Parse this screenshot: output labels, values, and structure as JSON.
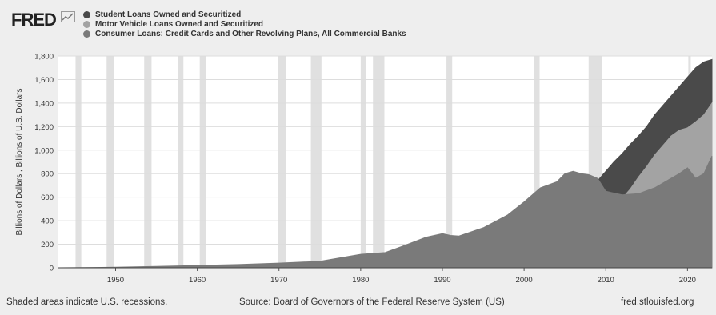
{
  "brand": {
    "name": "FRED"
  },
  "footer": {
    "left": "Shaded areas indicate U.S. recessions.",
    "center": "Source: Board of Governors of the Federal Reserve System (US)",
    "right": "fred.stlouisfed.org"
  },
  "colors": {
    "student": "#4a4a4a",
    "motor": "#a3a3a3",
    "consumer": "#7a7a7a",
    "recession": "#e0e0e0",
    "plot_bg": "#ffffff"
  },
  "chart_data": {
    "type": "area",
    "title": "",
    "xlabel": "",
    "ylabel": "Billions of Dollars , Billions of U.S. Dollars",
    "xlim": [
      1943,
      2023
    ],
    "ylim": [
      0,
      1800
    ],
    "grid": true,
    "legend_position": "top-left",
    "x_ticks": [
      "1950",
      "1960",
      "1970",
      "1980",
      "1990",
      "2000",
      "2010",
      "2020"
    ],
    "y_ticks": [
      "0",
      "200",
      "400",
      "600",
      "800",
      "1,000",
      "1,200",
      "1,400",
      "1,600",
      "1,800"
    ],
    "recessions": [
      [
        1945.1,
        1945.8
      ],
      [
        1948.9,
        1949.8
      ],
      [
        1953.5,
        1954.4
      ],
      [
        1957.6,
        1958.3
      ],
      [
        1960.3,
        1961.1
      ],
      [
        1969.9,
        1970.9
      ],
      [
        1973.9,
        1975.2
      ],
      [
        1980.0,
        1980.6
      ],
      [
        1981.5,
        1982.9
      ],
      [
        1990.5,
        1991.2
      ],
      [
        2001.2,
        2001.9
      ],
      [
        2007.9,
        2009.5
      ],
      [
        2020.1,
        2020.4
      ]
    ],
    "series": [
      {
        "name": "Student Loans Owned and Securitized",
        "color": "#4a4a4a",
        "x": [
          2006,
          2006.5,
          2007,
          2007.5,
          2008,
          2008.5,
          2009,
          2010,
          2011,
          2012,
          2013,
          2014,
          2015,
          2016,
          2017,
          2018,
          2019,
          2020,
          2021,
          2022,
          2023
        ],
        "y": [
          480,
          520,
          560,
          600,
          650,
          690,
          740,
          820,
          900,
          970,
          1050,
          1120,
          1200,
          1300,
          1380,
          1460,
          1540,
          1620,
          1700,
          1750,
          1770
        ]
      },
      {
        "name": "Motor Vehicle Loans Owned and Securitized",
        "color": "#a3a3a3",
        "x": [
          2000.5,
          2001,
          2002,
          2003,
          2004,
          2005,
          2006,
          2007,
          2008,
          2009,
          2010,
          2011,
          2012,
          2013,
          2014,
          2015,
          2016,
          2017,
          2018,
          2019,
          2020,
          2021,
          2022,
          2023
        ],
        "y": [
          230,
          240,
          250,
          260,
          270,
          290,
          310,
          350,
          400,
          440,
          470,
          520,
          590,
          670,
          770,
          860,
          960,
          1040,
          1120,
          1170,
          1190,
          1240,
          1300,
          1400
        ]
      },
      {
        "name": "Consumer Loans: Credit Cards and Other Revolving Plans, All Commercial Banks",
        "color": "#7a7a7a",
        "x": [
          1943,
          1950,
          1955,
          1960,
          1965,
          1970,
          1975,
          1980,
          1983,
          1985,
          1988,
          1990,
          1991,
          1992,
          1995,
          1998,
          2000,
          2002,
          2004,
          2005,
          2006,
          2007,
          2008,
          2009,
          2010,
          2012,
          2014,
          2016,
          2018,
          2019,
          2020,
          2021,
          2022,
          2023
        ],
        "y": [
          0,
          5,
          12,
          20,
          28,
          40,
          55,
          115,
          130,
          180,
          260,
          290,
          275,
          270,
          340,
          450,
          560,
          680,
          730,
          800,
          820,
          800,
          790,
          760,
          650,
          620,
          630,
          680,
          760,
          800,
          850,
          760,
          800,
          950
        ]
      }
    ]
  }
}
